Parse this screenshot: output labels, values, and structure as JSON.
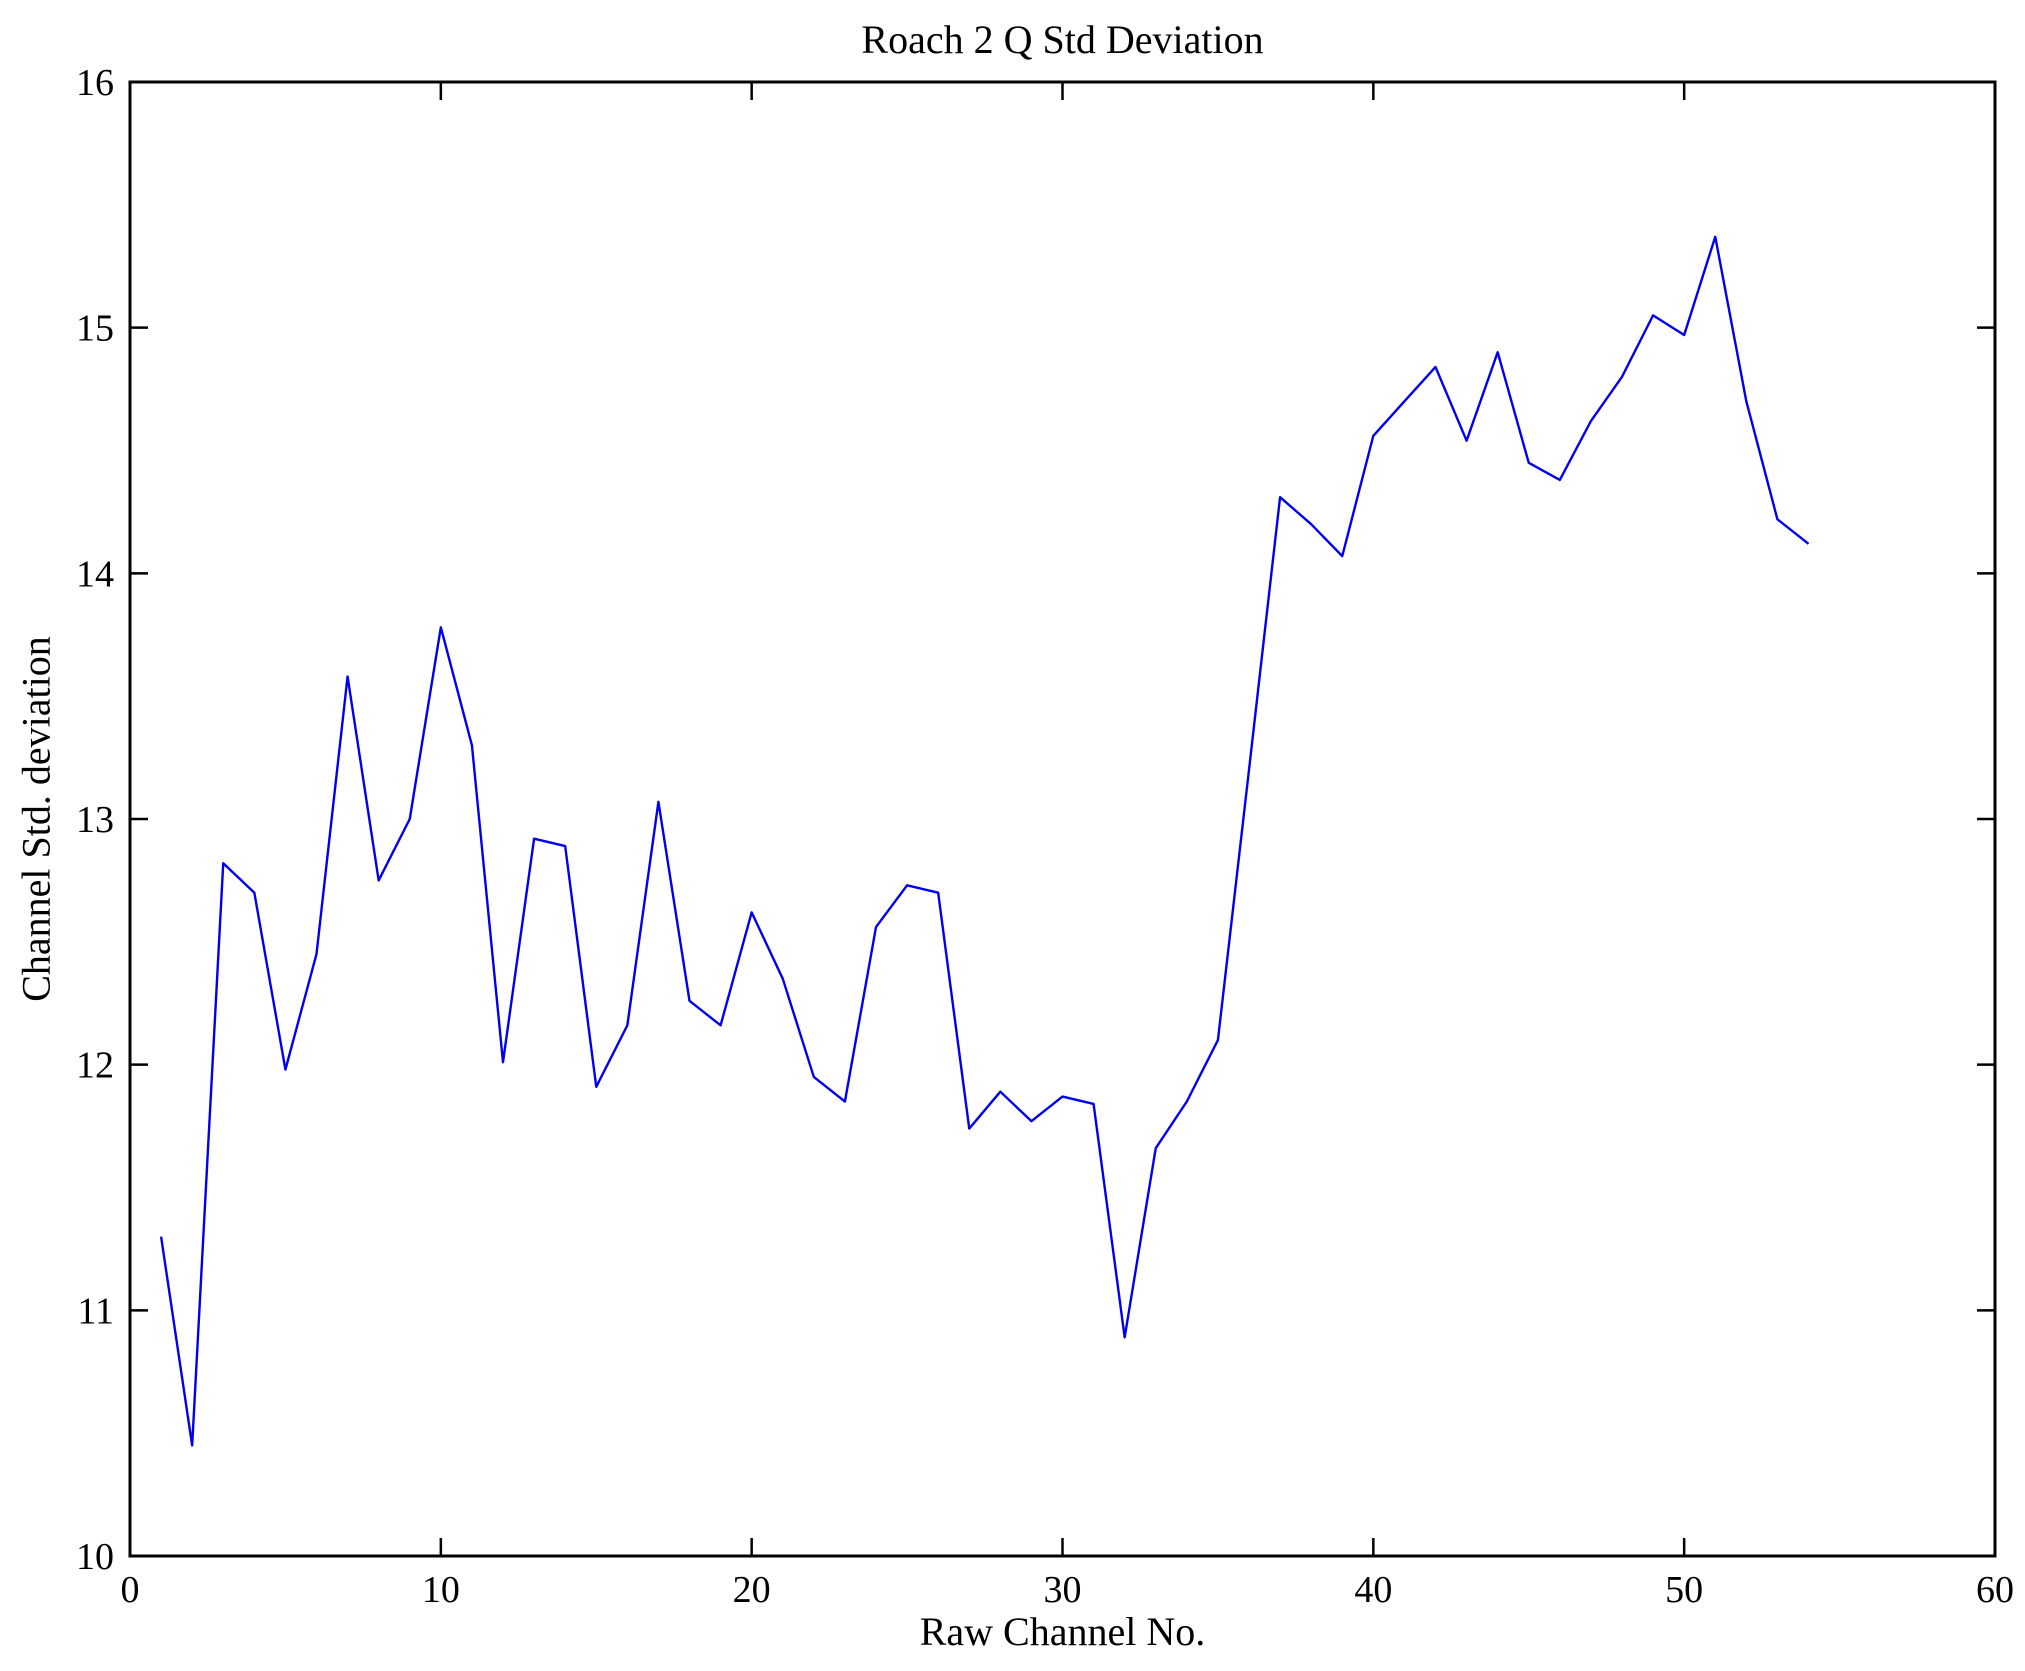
{
  "chart_data": {
    "type": "line",
    "title": "Roach 2 Q Std Deviation",
    "xlabel": "Raw Channel No.",
    "ylabel": "Channel Std. deviation",
    "xlim": [
      0,
      60
    ],
    "ylim": [
      10,
      16
    ],
    "xticks": [
      0,
      10,
      20,
      30,
      40,
      50,
      60
    ],
    "yticks": [
      10,
      11,
      12,
      13,
      14,
      15,
      16
    ],
    "grid": false,
    "legend": "none",
    "line_color": "#0000ee",
    "axis_color": "#000000",
    "x": [
      1,
      2,
      3,
      4,
      5,
      6,
      7,
      8,
      9,
      10,
      11,
      12,
      13,
      14,
      15,
      16,
      17,
      18,
      19,
      20,
      21,
      22,
      23,
      24,
      25,
      26,
      27,
      28,
      29,
      30,
      31,
      32,
      33,
      34,
      35,
      36,
      37,
      38,
      39,
      40,
      41,
      42,
      43,
      44,
      45,
      46,
      47,
      48,
      49,
      50,
      51,
      52,
      53,
      54
    ],
    "y": [
      11.3,
      10.45,
      12.82,
      12.7,
      11.98,
      12.45,
      13.58,
      12.75,
      13.0,
      13.78,
      13.3,
      12.01,
      12.92,
      12.89,
      11.91,
      12.16,
      13.07,
      12.26,
      12.16,
      12.62,
      12.35,
      11.95,
      11.85,
      12.56,
      12.73,
      12.7,
      11.74,
      11.89,
      11.77,
      11.87,
      11.84,
      10.89,
      11.66,
      11.85,
      12.1,
      13.2,
      14.31,
      14.2,
      14.07,
      14.56,
      14.7,
      14.84,
      14.54,
      14.9,
      14.45,
      14.38,
      14.62,
      14.8,
      15.05,
      14.97,
      15.37,
      14.7,
      14.22,
      14.12
    ]
  }
}
